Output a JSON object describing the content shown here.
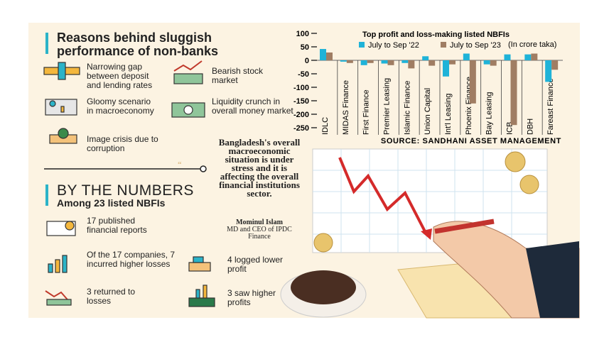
{
  "headline": "Reasons behind sluggish performance of non-banks",
  "reasons": [
    "Narrowing gap between deposit and lending rates",
    "Bearish stock market",
    "Gloomy scenario in macroeconomy",
    "Liquidity crunch in overall money market",
    "Image crisis due to corruption"
  ],
  "quote": {
    "text": "Bangladesh's overall macroeconomic situation is under stress and it is affecting the overall financial institutions sector.",
    "author": "Mominul Islam",
    "role": "MD and CEO of IPDC Finance"
  },
  "numbers": {
    "title": "BY THE NUMBERS",
    "subtitle": "Among 23 listed NBFIs",
    "items": [
      "17 published financial reports",
      "Of the 17 companies, 7 incurred higher losses",
      "4 logged lower profit",
      "3 returned to losses",
      "3 saw higher profits"
    ]
  },
  "chart_data": {
    "type": "bar",
    "title": "Top profit and loss-making listed NBFIs",
    "unit_note": "(In crore taka)",
    "source": "SOURCE: SANDHANI ASSET MANAGEMENT",
    "categories": [
      "IDLC",
      "MIDAS Finance",
      "First Finance",
      "Premier Leasing",
      "Islamic Finance",
      "Union Capital",
      "Int'l Leasing",
      "Phoenix Finance",
      "Bay Leasing",
      "ICB",
      "DBH",
      "Fareast Finance"
    ],
    "series": [
      {
        "name": "July to Sep '22",
        "color": "#1fb3d8",
        "values": [
          42,
          -5,
          -18,
          -12,
          -10,
          15,
          -60,
          25,
          -15,
          22,
          22,
          -80
        ]
      },
      {
        "name": "July to Sep '23",
        "color": "#a07d63",
        "values": [
          29,
          -10,
          -10,
          -18,
          -30,
          -20,
          -15,
          -160,
          -20,
          -240,
          25,
          -35
        ]
      }
    ],
    "ylim": [
      -250,
      100
    ],
    "yticks": [
      100,
      50,
      0,
      -50,
      -100,
      -150,
      -200,
      -250
    ]
  }
}
